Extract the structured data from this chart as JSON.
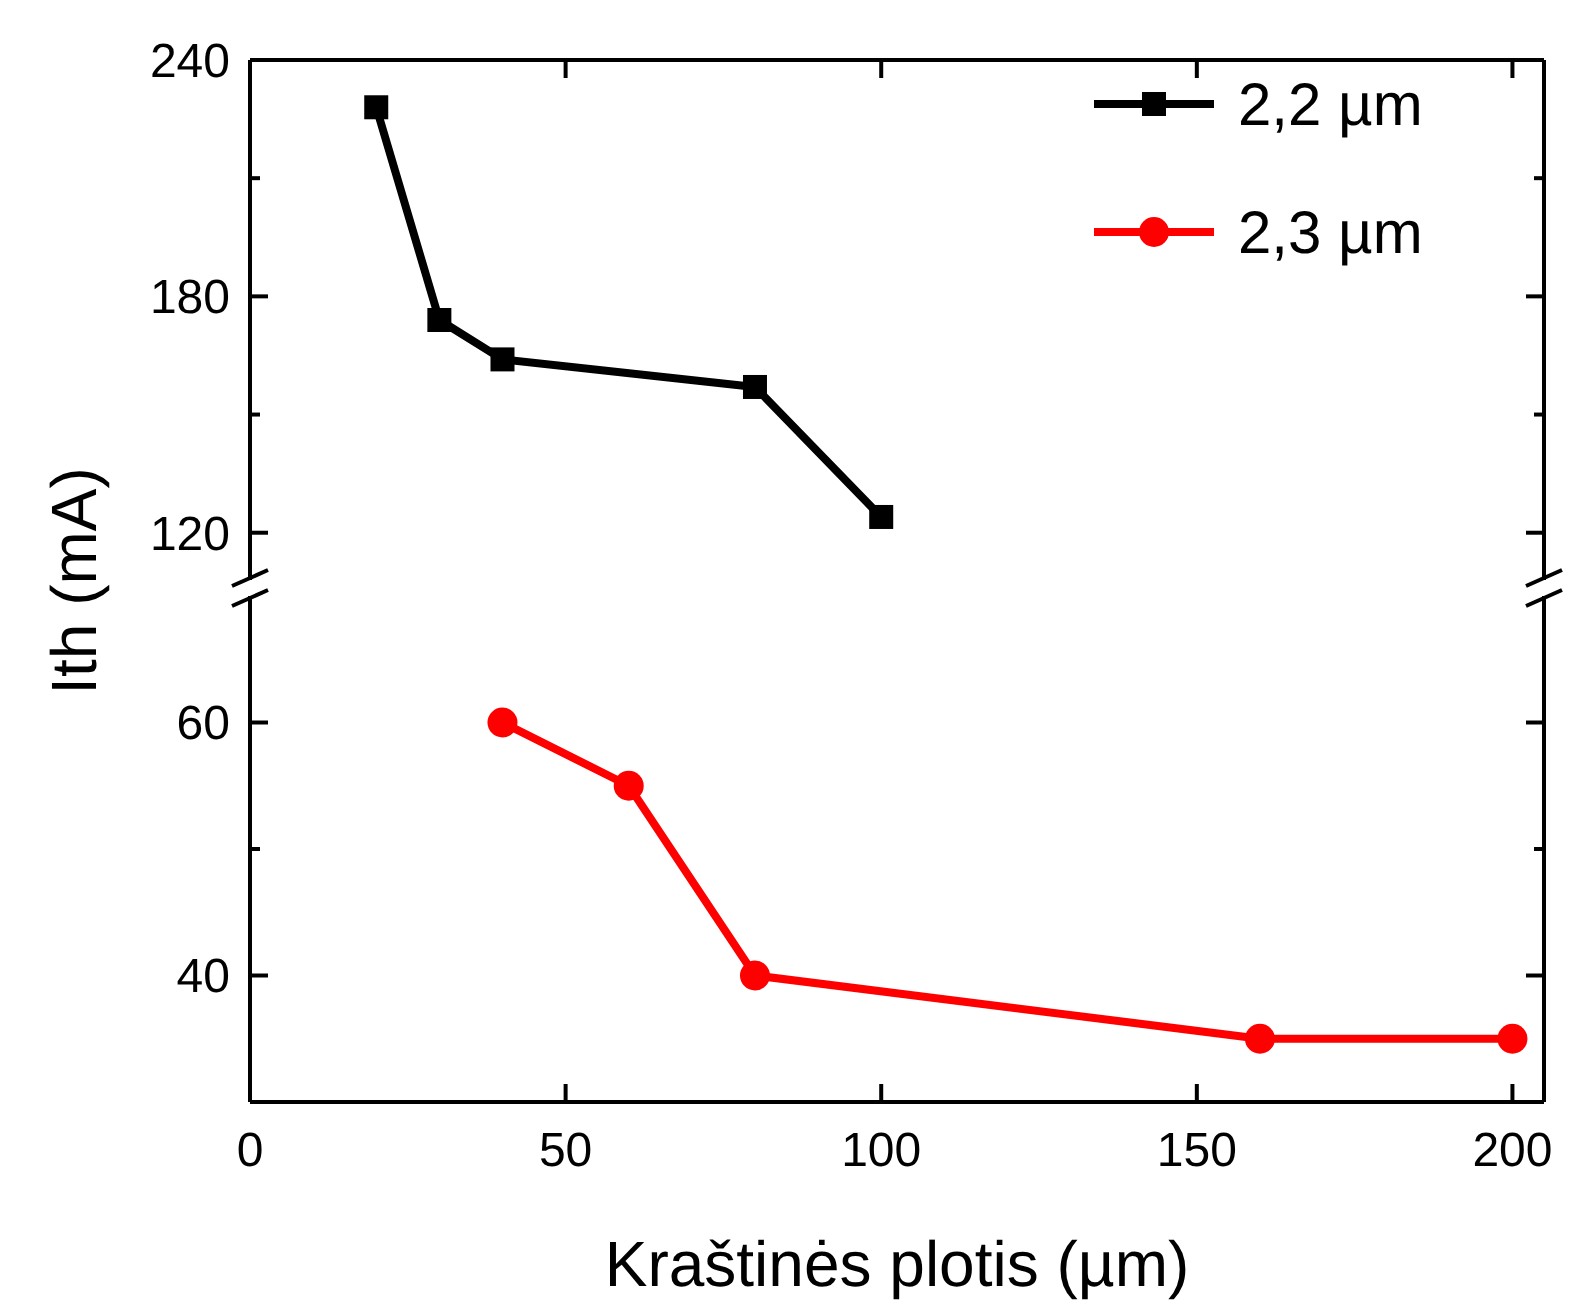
{
  "chart_data": [
    {
      "type": "line",
      "ylabel": "Ith (mA)",
      "xlim": [
        0,
        205
      ],
      "xticks": [
        0,
        50,
        100,
        150,
        200
      ],
      "ylim": [
        108,
        240
      ],
      "yticks": [
        120,
        {
          "value": 150,
          "label": null
        },
        180,
        {
          "value": 210,
          "label": null
        },
        240
      ],
      "tick_labels": "y",
      "legend": "top right",
      "line_style": "solid",
      "series": [
        {
          "name": "2,2 µm",
          "color": "#000000",
          "marker": "square",
          "x": [
            20,
            30,
            40,
            80,
            100
          ],
          "values": [
            228,
            174,
            164,
            157,
            124
          ]
        }
      ]
    },
    {
      "type": "line",
      "xlabel": "Kraštinės plotis (µm)",
      "xlim": [
        0,
        205
      ],
      "xticks": [
        0,
        50,
        100,
        150,
        200
      ],
      "ylim": [
        30,
        70
      ],
      "yticks": [
        40,
        {
          "value": 50,
          "label": null
        },
        60
      ],
      "legend": "top right",
      "line_style": "solid",
      "series": [
        {
          "name": "2,3 µm",
          "color": "#ff0000",
          "marker": "circle",
          "x": [
            40,
            60,
            80,
            160,
            200
          ],
          "values": [
            60,
            55,
            40,
            35,
            35
          ]
        }
      ]
    }
  ]
}
